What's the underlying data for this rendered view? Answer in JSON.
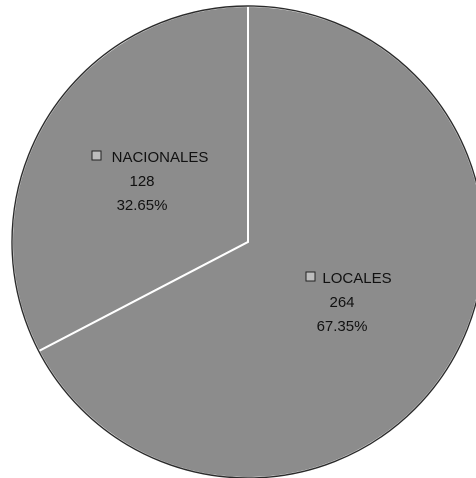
{
  "chart_data": {
    "type": "pie",
    "categories": [
      "NACIONALES",
      "LOCALES"
    ],
    "values": [
      128,
      264
    ],
    "percent_labels": [
      "32.65%",
      "67.35%"
    ],
    "slice_color": "#8c8c8c",
    "separator_color": "#ffffff",
    "start_angle": "12 o'clock",
    "direction": "counterclockwise for NACIONALES, remaining slice LOCALES",
    "legend": "labels inside slices with square markers"
  }
}
